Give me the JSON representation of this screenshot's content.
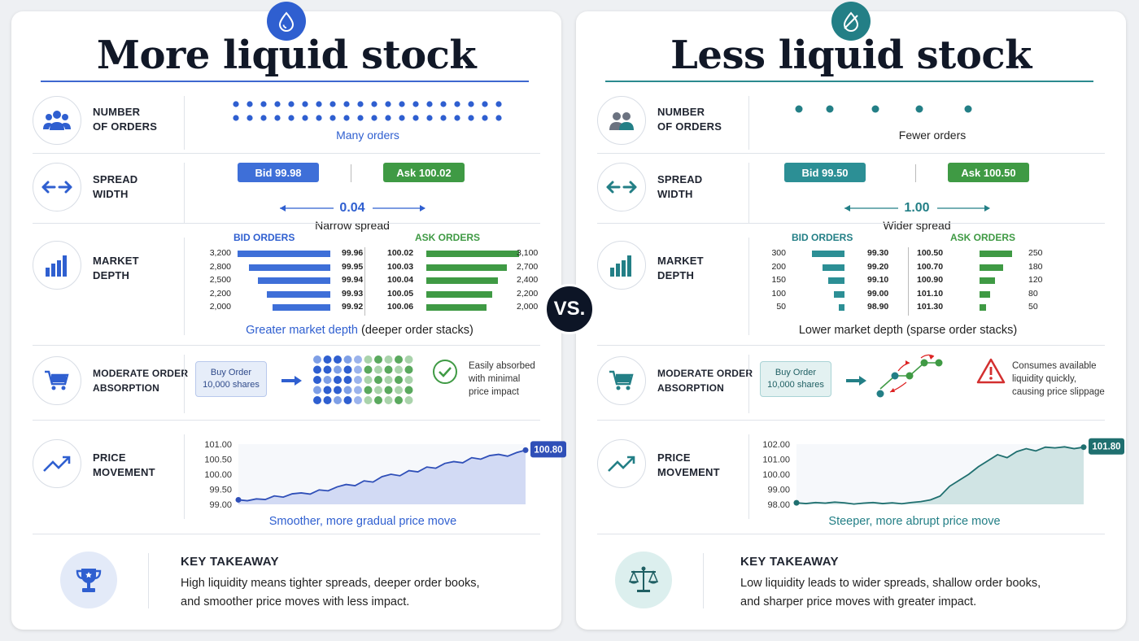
{
  "vs": "VS.",
  "left": {
    "title": "More liquid stock",
    "accent": "#2f5fd0",
    "orders": {
      "label_line1": "NUMBER",
      "label_line2": "OF ORDERS",
      "caption": "Many orders"
    },
    "spread": {
      "label_line1": "SPREAD",
      "label_line2": "WIDTH",
      "bid": "Bid 99.98",
      "ask": "Ask 100.02",
      "value": "0.04",
      "caption": "Narrow spread"
    },
    "depth": {
      "label_line1": "MARKET",
      "label_line2": "DEPTH",
      "bid_head": "BID ORDERS",
      "ask_head": "ASK ORDERS",
      "bid_sizes": [
        "3,200",
        "2,800",
        "2,500",
        "2,200",
        "2,000"
      ],
      "bid_prices": [
        "99.96",
        "99.95",
        "99.94",
        "99.93",
        "99.92"
      ],
      "ask_prices": [
        "100.02",
        "100.03",
        "100.04",
        "100.05",
        "100.06"
      ],
      "ask_sizes": [
        "3,100",
        "2,700",
        "2,400",
        "2,200",
        "2,000"
      ],
      "caption_main": "Greater market depth",
      "caption_extra": " (deeper order stacks)"
    },
    "absorption": {
      "label_line1": "MODERATE ORDER",
      "label_line2": "ABSORPTION",
      "buy_line1": "Buy Order",
      "buy_line2": "10,000 shares",
      "note_lines": [
        "Easily absorbed",
        "with minimal",
        "price impact"
      ]
    },
    "price": {
      "label_line1": "PRICE",
      "label_line2": "MOVEMENT",
      "ticks": [
        "101.00",
        "100.50",
        "100.00",
        "99.50",
        "99.00"
      ],
      "last": "100.80",
      "caption": "Smoother, more gradual price move"
    },
    "takeaway": {
      "head": "KEY TAKEAWAY",
      "line1": "High liquidity means tighter spreads, deeper order books,",
      "line2": "and smoother price moves with less impact."
    }
  },
  "right": {
    "title": "Less liquid stock",
    "accent": "#237f86",
    "orders": {
      "label_line1": "NUMBER",
      "label_line2": "OF ORDERS",
      "caption": "Fewer orders"
    },
    "spread": {
      "label_line1": "SPREAD",
      "label_line2": "WIDTH",
      "bid": "Bid 99.50",
      "ask": "Ask 100.50",
      "value": "1.00",
      "caption": "Wider spread"
    },
    "depth": {
      "label_line1": "MARKET",
      "label_line2": "DEPTH",
      "bid_head": "BID ORDERS",
      "ask_head": "ASK ORDERS",
      "bid_sizes": [
        "300",
        "200",
        "150",
        "100",
        "50"
      ],
      "bid_prices": [
        "99.30",
        "99.20",
        "99.10",
        "99.00",
        "98.90"
      ],
      "ask_prices": [
        "100.50",
        "100.70",
        "100.90",
        "101.10",
        "101.30"
      ],
      "ask_sizes": [
        "250",
        "180",
        "120",
        "80",
        "50"
      ],
      "caption_main": "Lower market depth (sparse order stacks)",
      "caption_extra": ""
    },
    "absorption": {
      "label_line1": "MODERATE ORDER",
      "label_line2": "ABSORPTION",
      "buy_line1": "Buy Order",
      "buy_line2": "10,000 shares",
      "note_lines": [
        "Consumes available",
        "liquidity quickly,",
        "causing price slippage"
      ]
    },
    "price": {
      "label_line1": "PRICE",
      "label_line2": "MOVEMENT",
      "ticks": [
        "102.00",
        "101.00",
        "100.00",
        "99.00",
        "98.00"
      ],
      "last": "101.80",
      "caption": "Steeper, more abrupt price move"
    },
    "takeaway": {
      "head": "KEY TAKEAWAY",
      "line1": "Low liquidity leads to wider spreads, shallow order books,",
      "line2": "and sharper price moves with greater impact."
    }
  },
  "chart_data": [
    {
      "type": "bar",
      "categories": [
        "99.96",
        "99.95",
        "99.94",
        "99.93",
        "99.92"
      ],
      "series": [
        {
          "name": "BID ORDERS",
          "values": [
            3200,
            2800,
            2500,
            2200,
            2000
          ]
        }
      ]
    },
    {
      "type": "bar",
      "categories": [
        "100.02",
        "100.03",
        "100.04",
        "100.05",
        "100.06"
      ],
      "series": [
        {
          "name": "ASK ORDERS",
          "values": [
            3100,
            2700,
            2400,
            2200,
            2000
          ]
        }
      ]
    },
    {
      "type": "area",
      "ylim": [
        99.0,
        101.0
      ],
      "values": [
        99.15,
        99.12,
        99.18,
        99.16,
        99.28,
        99.24,
        99.35,
        99.38,
        99.34,
        99.48,
        99.45,
        99.58,
        99.66,
        99.62,
        99.78,
        99.74,
        99.92,
        100.0,
        99.95,
        100.12,
        100.08,
        100.24,
        100.2,
        100.36,
        100.42,
        100.38,
        100.55,
        100.5,
        100.62,
        100.66,
        100.6,
        100.72,
        100.8
      ]
    },
    {
      "type": "bar",
      "categories": [
        "99.30",
        "99.20",
        "99.10",
        "99.00",
        "98.90"
      ],
      "series": [
        {
          "name": "BID ORDERS",
          "values": [
            300,
            200,
            150,
            100,
            50
          ]
        }
      ]
    },
    {
      "type": "bar",
      "categories": [
        "100.50",
        "100.70",
        "100.90",
        "101.10",
        "101.30"
      ],
      "series": [
        {
          "name": "ASK ORDERS",
          "values": [
            250,
            180,
            120,
            80,
            50
          ]
        }
      ]
    },
    {
      "type": "area",
      "ylim": [
        98.0,
        102.0
      ],
      "values": [
        98.1,
        98.05,
        98.12,
        98.08,
        98.15,
        98.1,
        98.02,
        98.08,
        98.12,
        98.05,
        98.1,
        98.04,
        98.12,
        98.18,
        98.3,
        98.55,
        99.2,
        99.6,
        100.0,
        100.5,
        100.9,
        101.3,
        101.1,
        101.5,
        101.7,
        101.55,
        101.8,
        101.75,
        101.82,
        101.7,
        101.8
      ]
    }
  ]
}
